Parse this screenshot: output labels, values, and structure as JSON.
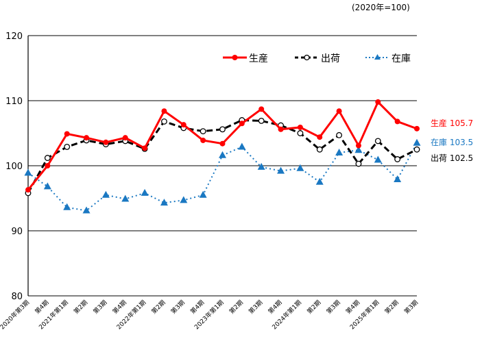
{
  "unit_note": "(2020年=100)",
  "colors": {
    "production": "#ff0000",
    "shipments": "#000000",
    "inventory": "#1a78c2"
  },
  "end_labels": {
    "production": "生産 105.7",
    "inventory": "在庫 103.5",
    "shipments": "出荷 102.5"
  },
  "chart_data": {
    "type": "line",
    "title": "",
    "subtitle": "(2020年=100)",
    "xlabel": "",
    "ylabel": "",
    "ylim": [
      80,
      120
    ],
    "yticks": [
      80,
      90,
      100,
      110,
      120
    ],
    "grid": "horizontal",
    "legend_position": "top-right inside",
    "categories": [
      "2020年第3期",
      "第4期",
      "2021年第1期",
      "第2期",
      "第3期",
      "第4期",
      "2022年第1期",
      "第2期",
      "第3期",
      "第4期",
      "2023年第1期",
      "第2期",
      "第3期",
      "第4期",
      "2024年第1期",
      "第2期",
      "第3期",
      "第4期",
      "2025年第1期",
      "第2期",
      "第3期"
    ],
    "series": [
      {
        "name": "生産",
        "style": "solid red, filled circle markers",
        "values": [
          96.3,
          100.0,
          104.9,
          104.3,
          103.6,
          104.3,
          102.7,
          108.4,
          106.3,
          103.9,
          103.4,
          106.5,
          108.7,
          105.6,
          105.9,
          104.4,
          108.4,
          103.1,
          109.8,
          106.8,
          105.7
        ]
      },
      {
        "name": "出荷",
        "style": "dashed black, open circle markers",
        "values": [
          95.8,
          101.2,
          102.9,
          103.9,
          103.3,
          103.8,
          102.6,
          106.8,
          105.8,
          105.3,
          105.6,
          107.0,
          106.9,
          106.2,
          105.0,
          102.5,
          104.7,
          100.3,
          103.8,
          101.0,
          102.5
        ]
      },
      {
        "name": "在庫",
        "style": "dotted blue, triangle markers",
        "values": [
          98.9,
          96.8,
          93.6,
          93.1,
          95.5,
          94.9,
          95.8,
          94.3,
          94.7,
          95.5,
          101.6,
          102.9,
          99.8,
          99.2,
          99.6,
          97.5,
          102.0,
          102.4,
          100.9,
          97.9,
          103.5
        ]
      }
    ]
  }
}
